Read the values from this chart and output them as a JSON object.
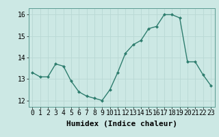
{
  "x": [
    0,
    1,
    2,
    3,
    4,
    5,
    6,
    7,
    8,
    9,
    10,
    11,
    12,
    13,
    14,
    15,
    16,
    17,
    18,
    19,
    20,
    21,
    22,
    23
  ],
  "y": [
    13.3,
    13.1,
    13.1,
    13.7,
    13.6,
    12.9,
    12.4,
    12.2,
    12.1,
    12.0,
    12.5,
    13.3,
    14.2,
    14.6,
    14.8,
    15.35,
    15.45,
    16.0,
    16.0,
    15.85,
    13.8,
    13.8,
    13.2,
    12.7
  ],
  "xlabel": "Humidex (Indice chaleur)",
  "ylim": [
    11.7,
    16.3
  ],
  "xlim": [
    -0.5,
    23.5
  ],
  "yticks": [
    12,
    13,
    14,
    15,
    16
  ],
  "xticks": [
    0,
    1,
    2,
    3,
    4,
    5,
    6,
    7,
    8,
    9,
    10,
    11,
    12,
    13,
    14,
    15,
    16,
    17,
    18,
    19,
    20,
    21,
    22,
    23
  ],
  "line_color": "#2e7d6e",
  "marker_color": "#2e7d6e",
  "bg_color": "#cce8e4",
  "grid_color": "#b8d8d4",
  "tick_label_fontsize": 7,
  "xlabel_fontsize": 8
}
